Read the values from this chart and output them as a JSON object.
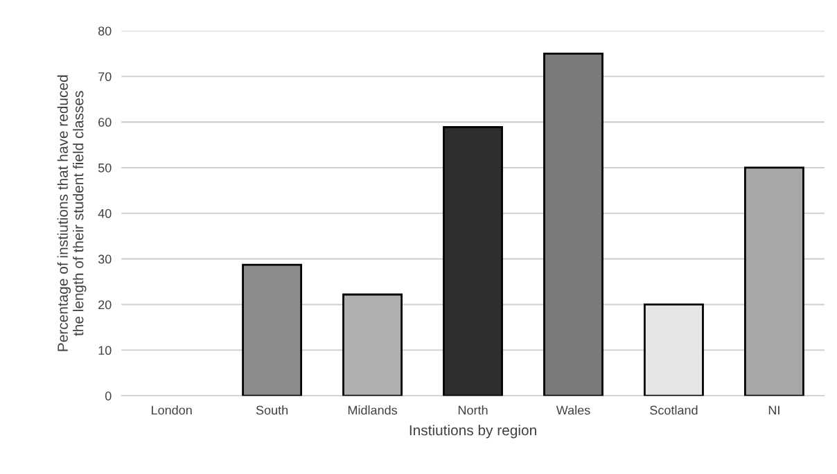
{
  "chart_data": {
    "type": "bar",
    "xlabel": "Instiutions by region",
    "ylabel": "Percentage of instiutions that have reduced\nthe length of their student field classes",
    "categories": [
      "London",
      "South",
      "Midlands",
      "North",
      "Wales",
      "Scotland",
      "NI"
    ],
    "values": [
      0,
      28.7,
      22.2,
      58.9,
      75,
      20,
      50
    ],
    "colors": [
      "#ffffff",
      "#8c8c8c",
      "#b0b0b0",
      "#2e2e2e",
      "#7a7a7a",
      "#e6e6e6",
      "#a8a8a8"
    ],
    "ylim": [
      0,
      80
    ],
    "yticks": [
      0,
      10,
      20,
      30,
      40,
      50,
      60,
      70,
      80
    ],
    "grid": "y",
    "legend": false
  }
}
